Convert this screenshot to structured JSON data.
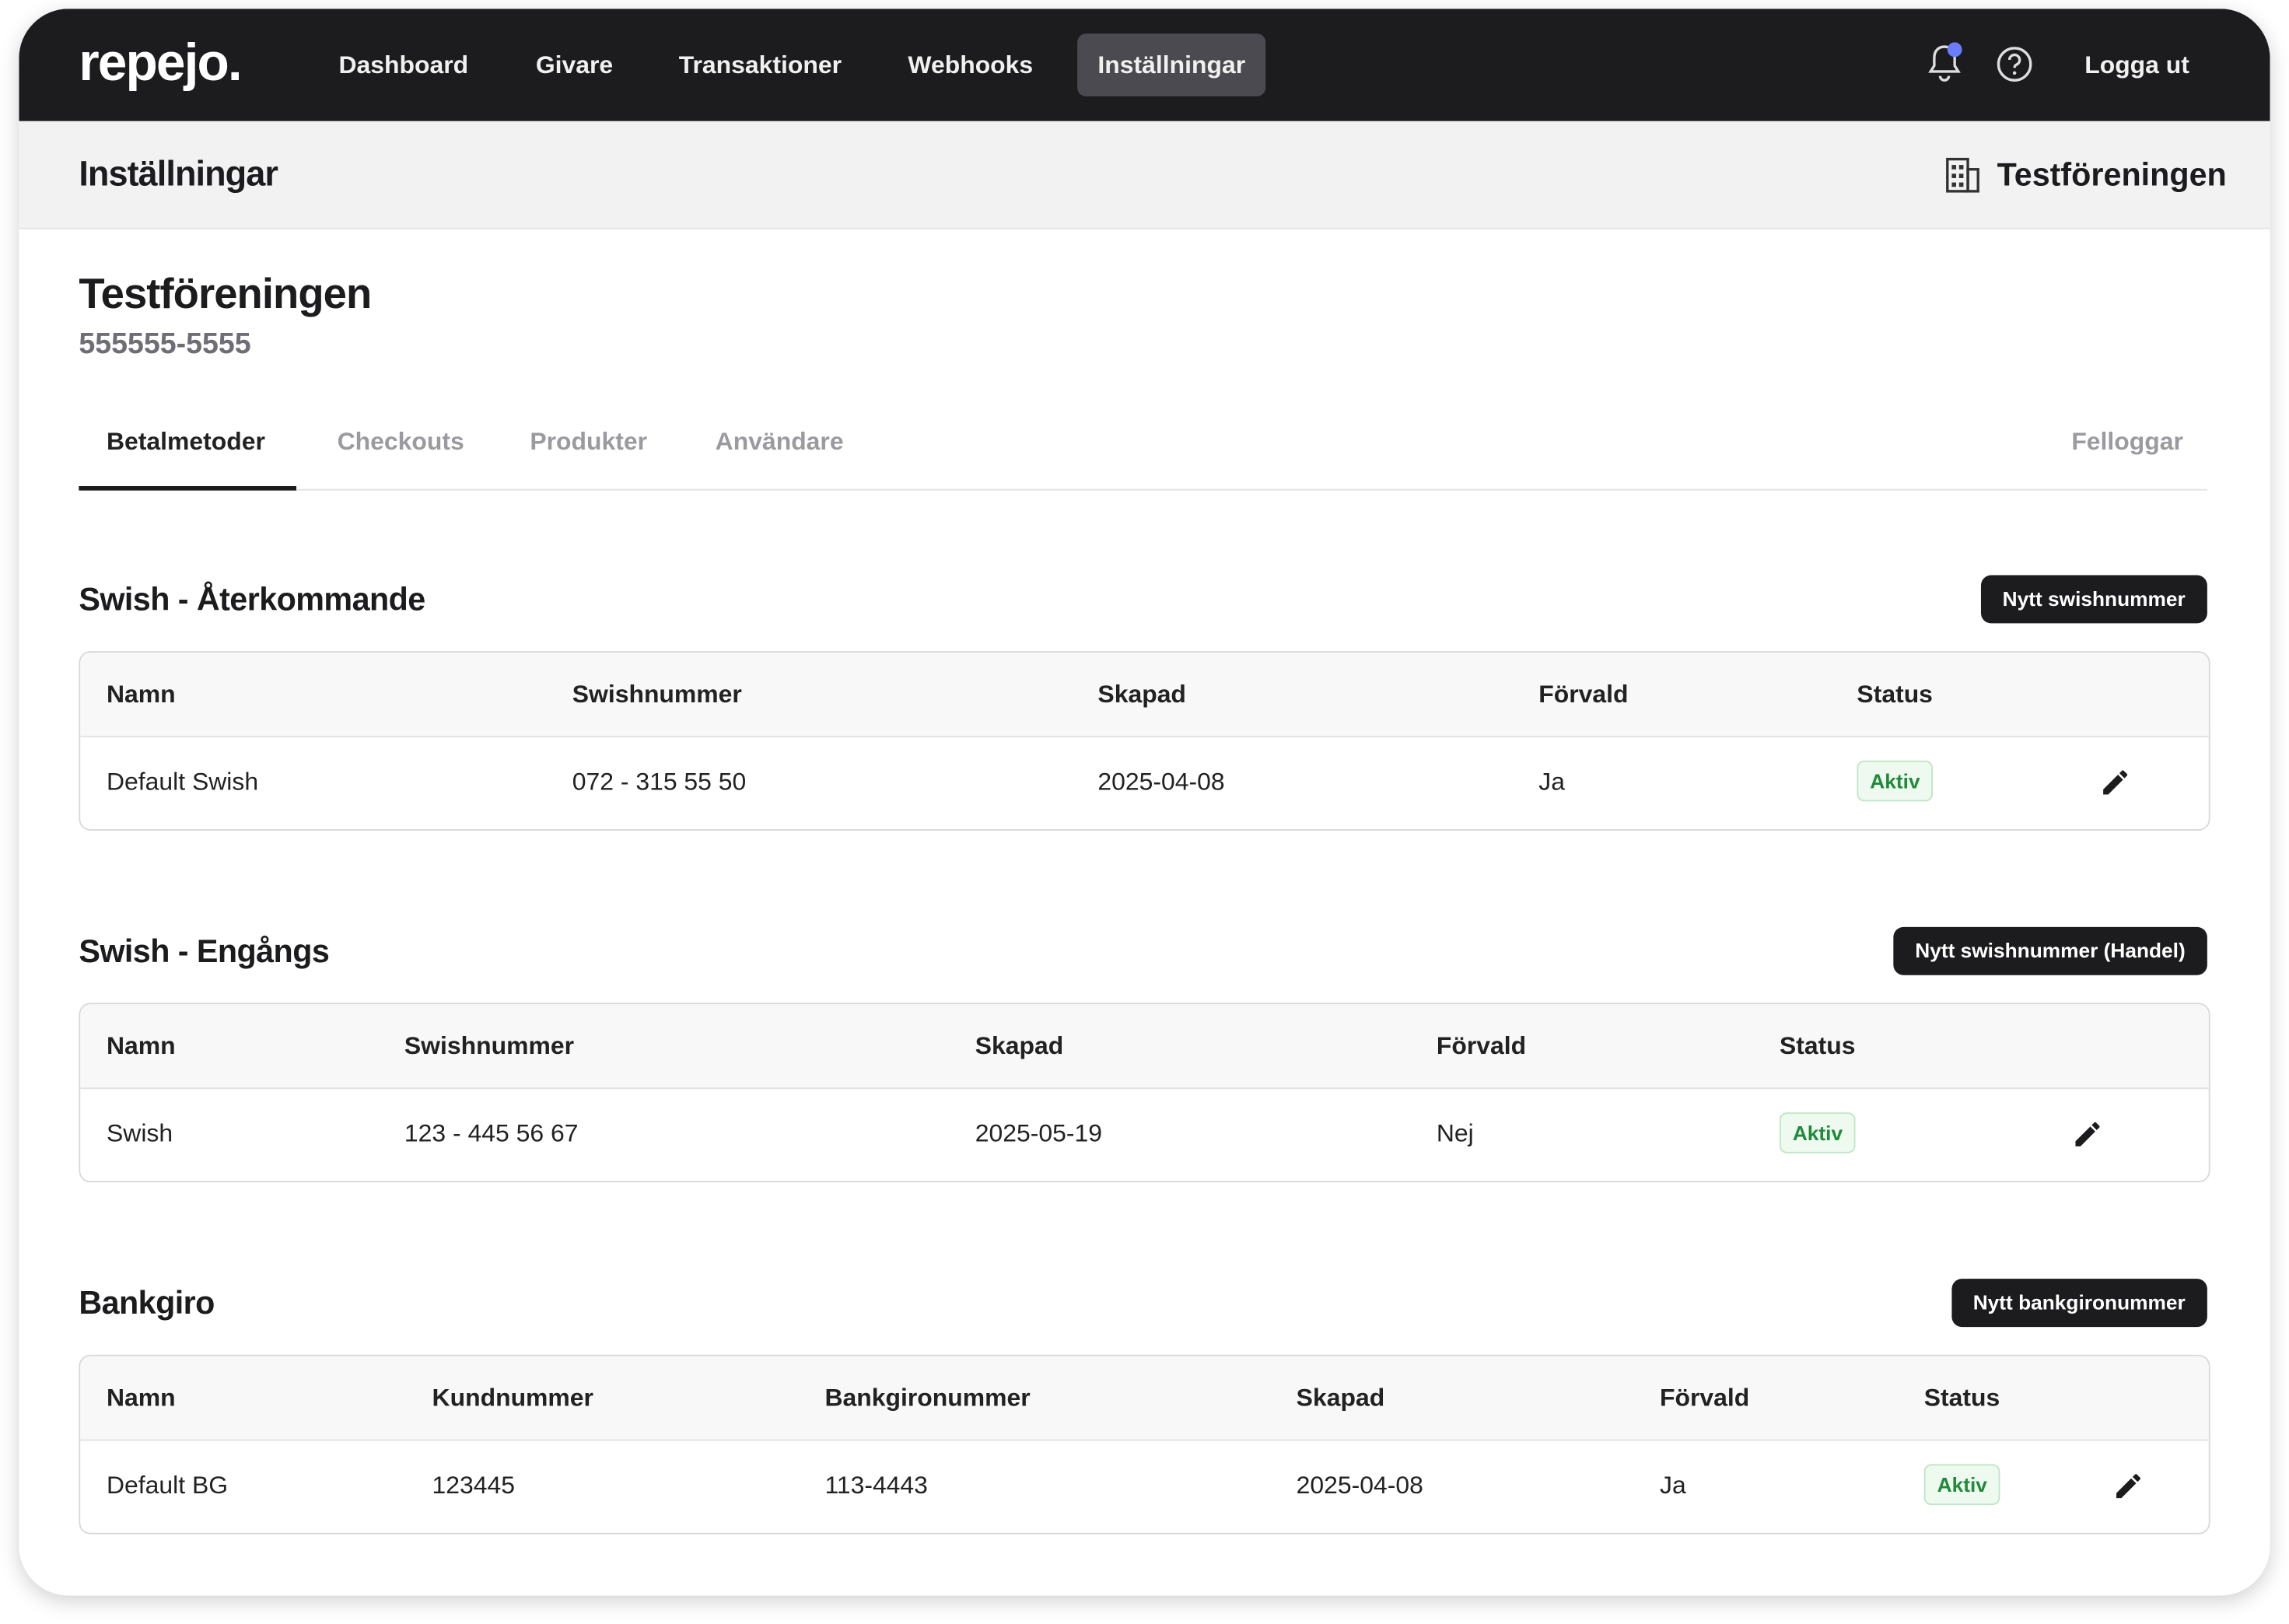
{
  "nav": {
    "logo": "repejo.",
    "items": [
      "Dashboard",
      "Givare",
      "Transaktioner",
      "Webhooks",
      "Inställningar"
    ],
    "logout": "Logga ut"
  },
  "header": {
    "title": "Inställningar",
    "org": "Testföreningen"
  },
  "org": {
    "name": "Testföreningen",
    "number": "555555-5555"
  },
  "tabs": {
    "items": [
      "Betalmetoder",
      "Checkouts",
      "Produkter",
      "Användare"
    ],
    "right": "Felloggar"
  },
  "sections": [
    {
      "title": "Swish - Återkommande",
      "button": "Nytt swishnummer",
      "columns": [
        "Namn",
        "Swishnummer",
        "Skapad",
        "Förvald",
        "Status"
      ],
      "rows": [
        [
          "Default Swish",
          "072 - 315 55 50",
          "2025-04-08",
          "Ja",
          "Aktiv"
        ]
      ]
    },
    {
      "title": "Swish - Engångs",
      "button": "Nytt swishnummer (Handel)",
      "columns": [
        "Namn",
        "Swishnummer",
        "Skapad",
        "Förvald",
        "Status"
      ],
      "rows": [
        [
          "Swish",
          "123 - 445 56 67",
          "2025-05-19",
          "Nej",
          "Aktiv"
        ]
      ]
    },
    {
      "title": "Bankgiro",
      "button": "Nytt bankgironummer",
      "columns": [
        "Namn",
        "Kundnummer",
        "Bankgironummer",
        "Skapad",
        "Förvald",
        "Status"
      ],
      "rows": [
        [
          "Default BG",
          "123445",
          "113-4443",
          "2025-04-08",
          "Ja",
          "Aktiv"
        ]
      ]
    }
  ]
}
